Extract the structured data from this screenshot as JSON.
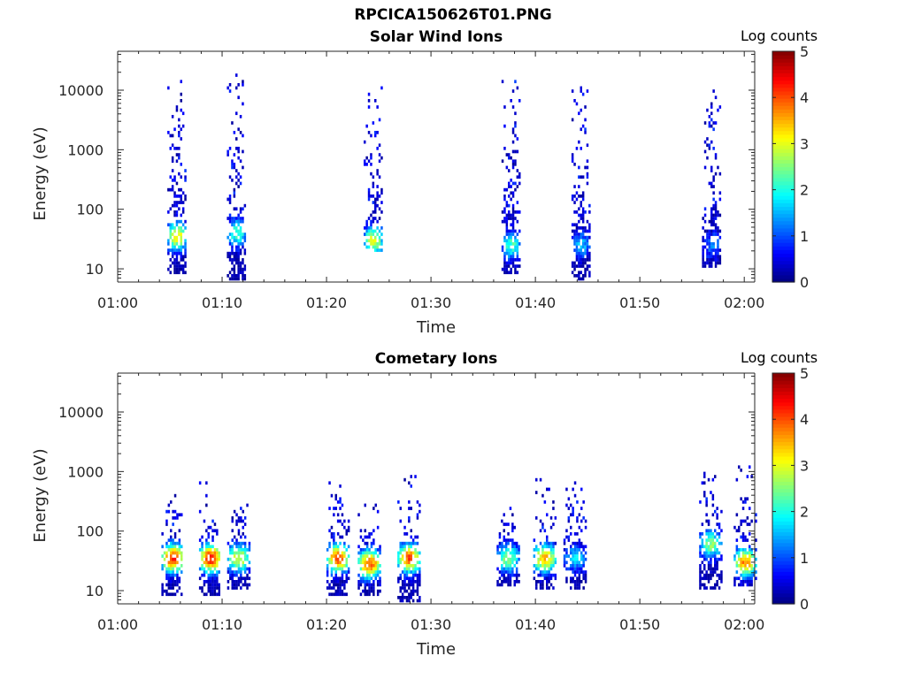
{
  "figure_title": "RPCICA150626T01.PNG",
  "chart_data": [
    {
      "type": "heatmap",
      "title": "Solar Wind Ions",
      "xlabel": "Time",
      "ylabel": "Energy (eV)",
      "colorbar_label": "Log counts",
      "x_ticks": [
        "01:00",
        "01:10",
        "01:20",
        "01:30",
        "01:40",
        "01:50",
        "02:00"
      ],
      "y_ticks": [
        "10",
        "100",
        "1000",
        "10000"
      ],
      "y_scale": "log",
      "ylim": [
        6,
        45000
      ],
      "xlim_minutes": [
        0,
        61
      ],
      "colorbar_ticks": [
        "0",
        "1",
        "2",
        "3",
        "4",
        "5"
      ],
      "clim": [
        0,
        5
      ],
      "bursts": [
        {
          "t": 5.6,
          "core_e": 35,
          "peak": 3.3,
          "spread_hi": 18000,
          "spread_lo": 8
        },
        {
          "t": 11.3,
          "core_e": 40,
          "peak": 2.3,
          "spread_hi": 20000,
          "spread_lo": 6
        },
        {
          "t": 24.4,
          "core_e": 30,
          "peak": 3.0,
          "spread_hi": 15000,
          "spread_lo": 20
        },
        {
          "t": 37.6,
          "core_e": 25,
          "peak": 2.2,
          "spread_hi": 18000,
          "spread_lo": 8
        },
        {
          "t": 44.3,
          "core_e": 25,
          "peak": 1.5,
          "spread_hi": 14000,
          "spread_lo": 6
        },
        {
          "t": 56.8,
          "core_e": 25,
          "peak": 1.2,
          "spread_hi": 10000,
          "spread_lo": 10
        }
      ]
    },
    {
      "type": "heatmap",
      "title": "Cometary Ions",
      "xlabel": "Time",
      "ylabel": "Energy (eV)",
      "colorbar_label": "Log counts",
      "x_ticks": [
        "01:00",
        "01:10",
        "01:20",
        "01:30",
        "01:40",
        "01:50",
        "02:00"
      ],
      "y_ticks": [
        "10",
        "100",
        "1000",
        "10000"
      ],
      "y_scale": "log",
      "ylim": [
        6,
        45000
      ],
      "xlim_minutes": [
        0,
        61
      ],
      "colorbar_ticks": [
        "0",
        "1",
        "2",
        "3",
        "4",
        "5"
      ],
      "clim": [
        0,
        5
      ],
      "bursts": [
        {
          "t": 5.2,
          "core_e": 35,
          "peak": 4.2,
          "spread_hi": 400,
          "spread_lo": 8
        },
        {
          "t": 8.8,
          "core_e": 35,
          "peak": 4.3,
          "spread_hi": 800,
          "spread_lo": 8
        },
        {
          "t": 11.5,
          "core_e": 35,
          "peak": 3.0,
          "spread_hi": 300,
          "spread_lo": 10
        },
        {
          "t": 21.0,
          "core_e": 35,
          "peak": 4.0,
          "spread_hi": 700,
          "spread_lo": 8
        },
        {
          "t": 24.0,
          "core_e": 28,
          "peak": 4.0,
          "spread_hi": 300,
          "spread_lo": 8
        },
        {
          "t": 27.8,
          "core_e": 35,
          "peak": 4.0,
          "spread_hi": 900,
          "spread_lo": 6
        },
        {
          "t": 37.3,
          "core_e": 35,
          "peak": 2.6,
          "spread_hi": 250,
          "spread_lo": 12
        },
        {
          "t": 40.8,
          "core_e": 35,
          "peak": 3.5,
          "spread_hi": 1000,
          "spread_lo": 10
        },
        {
          "t": 43.7,
          "core_e": 35,
          "peak": 1.7,
          "spread_hi": 700,
          "spread_lo": 10
        },
        {
          "t": 56.7,
          "core_e": 60,
          "peak": 2.5,
          "spread_hi": 1000,
          "spread_lo": 10
        },
        {
          "t": 60.0,
          "core_e": 30,
          "peak": 3.7,
          "spread_hi": 1200,
          "spread_lo": 12
        }
      ]
    }
  ]
}
